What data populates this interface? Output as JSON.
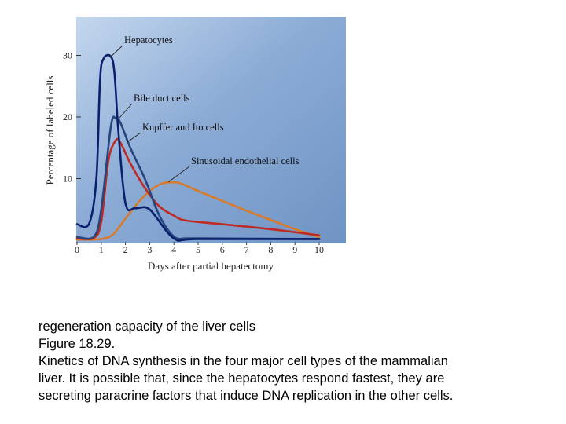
{
  "chart_data": {
    "type": "line",
    "xlabel": "Days after partial hepatectomy",
    "ylabel": "Percentage of labeled cells",
    "x_ticks": [
      "0",
      "1",
      "2",
      "3",
      "4",
      "5",
      "6",
      "7",
      "8",
      "9",
      "10"
    ],
    "y_ticks": [
      "10",
      "20",
      "30"
    ],
    "xlim": [
      0,
      10.3
    ],
    "ylim": [
      0,
      33
    ],
    "grid": false,
    "background_color": "#7d9fca",
    "series": [
      {
        "name": "Hepatocytes",
        "color": "#0a1f6e",
        "x": [
          0,
          0.5,
          0.8,
          0.95,
          1.1,
          1.4,
          1.55,
          1.7,
          2.0,
          2.4,
          3.0,
          4.0,
          5,
          10
        ],
        "y": [
          2.6,
          2.7,
          10,
          26,
          29.5,
          29.8,
          27,
          18,
          6,
          5.2,
          5.0,
          0.3,
          0.2,
          0.2
        ]
      },
      {
        "name": "Bile duct cells",
        "color": "#26457e",
        "x": [
          0,
          0.7,
          1.0,
          1.4,
          1.6,
          1.8,
          2.2,
          2.8,
          3.4,
          4.0,
          4.5,
          5,
          10
        ],
        "y": [
          0.5,
          0.6,
          5,
          18.5,
          19.8,
          19,
          15,
          10,
          4,
          0.6,
          0.3,
          0.3,
          0.2
        ]
      },
      {
        "name": "Kupffer and Ito cells",
        "color": "#bf2a22",
        "x": [
          0,
          0.7,
          1.0,
          1.3,
          1.6,
          1.8,
          2.2,
          2.8,
          3.4,
          4.0,
          4.5,
          6,
          8,
          10
        ],
        "y": [
          0.3,
          0.4,
          3,
          13,
          16.2,
          15.8,
          12.5,
          8.5,
          5.5,
          4,
          3.2,
          2.6,
          1.8,
          0.8
        ]
      },
      {
        "name": "Sinusoidal endothelial cells",
        "color": "#d97a2a",
        "x": [
          0,
          1.0,
          1.5,
          2.0,
          2.5,
          3.0,
          3.5,
          4.0,
          4.3,
          5,
          6,
          7,
          8,
          9,
          10
        ],
        "y": [
          0.1,
          0.2,
          1,
          3.5,
          6,
          8,
          9.2,
          9.4,
          9.2,
          8,
          6.4,
          4.8,
          3.3,
          1.8,
          0.5
        ]
      }
    ],
    "annotations": [
      {
        "text": "Hepatocytes",
        "series": 0
      },
      {
        "text": "Bile duct cells",
        "series": 1
      },
      {
        "text": "Kupffer and Ito cells",
        "series": 2
      },
      {
        "text": "Sinusoidal endothelial cells",
        "series": 3
      }
    ]
  },
  "caption": {
    "line1": "regeneration capacity of the liver cells",
    "line2": "Figure 18.29.",
    "line3": "Kinetics of DNA synthesis in the four major cell types of the mammalian",
    "line4": "liver. It is possible that, since the hepatocytes respond fastest, they are",
    "line5": "secreting paracrine factors that induce DNA replication in the other cells."
  }
}
